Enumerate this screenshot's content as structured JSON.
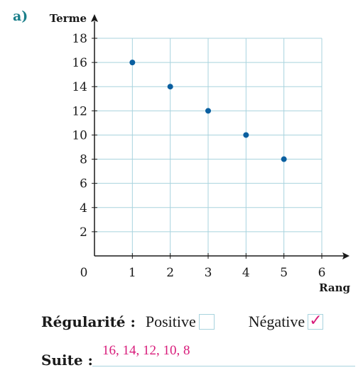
{
  "part_label": "a)",
  "chart_data": {
    "type": "scatter",
    "title": "",
    "xlabel": "Rang",
    "ylabel": "Terme",
    "xlim": [
      0,
      6
    ],
    "ylim": [
      0,
      18
    ],
    "x_ticks": [
      1,
      2,
      3,
      4,
      5,
      6
    ],
    "y_ticks": [
      2,
      4,
      6,
      8,
      10,
      12,
      14,
      16,
      18
    ],
    "origin_label": "0",
    "grid": true,
    "point_color": "#0a5fa0",
    "grid_color": "#a8d3de",
    "series": [
      {
        "x": [
          1,
          2,
          3,
          4,
          5
        ],
        "y": [
          16,
          14,
          12,
          10,
          8
        ]
      }
    ]
  },
  "regularity": {
    "label": "Régularité :",
    "positive_label": "Positive",
    "positive_checked": false,
    "negative_label": "Négative",
    "negative_checked": true,
    "check_mark": "✓"
  },
  "suite": {
    "label": "Suite :",
    "value": "16, 14, 12, 10, 8"
  }
}
